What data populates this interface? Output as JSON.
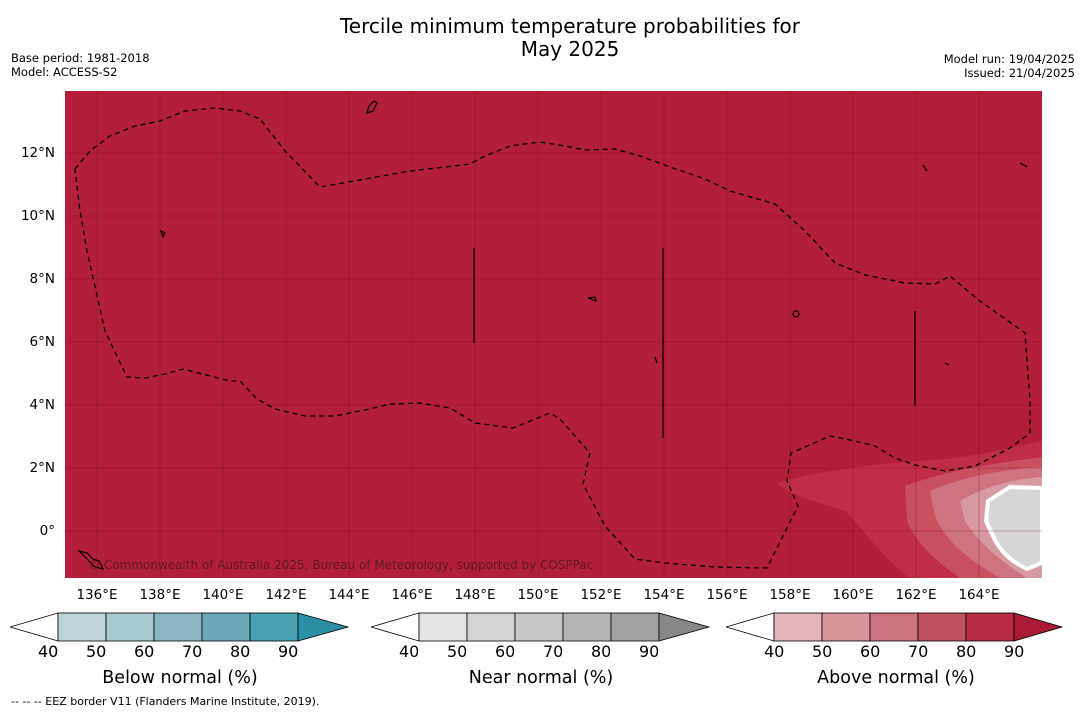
{
  "title": {
    "line1": "Tercile minimum temperature probabilities for",
    "line2": "May 2025"
  },
  "meta": {
    "base_period": "Base period: 1981-2018",
    "model": "Model: ACCESS-S2",
    "model_run": "Model run: 19/04/2025",
    "issued": "Issued: 21/04/2025"
  },
  "map": {
    "copyright": "© Commonwealth of Australia 2025, Bureau of Meteorology, supported by COSPPac",
    "lat_labels": [
      "12°N",
      "10°N",
      "8°N",
      "6°N",
      "4°N",
      "2°N",
      "0°"
    ],
    "lon_labels": [
      "136°E",
      "138°E",
      "140°E",
      "142°E",
      "144°E",
      "146°E",
      "148°E",
      "150°E",
      "152°E",
      "154°E",
      "156°E",
      "158°E",
      "160°E",
      "162°E",
      "164°E"
    ],
    "dominant_category": "Above normal",
    "dominant_probability_range": "90+",
    "colors": {
      "above_90": "#b31e3a",
      "above_80": "#c02d47",
      "above_70": "#c9505f",
      "above_60": "#cf7380",
      "above_50": "#d89aa1",
      "near_40": "#d6d6d6",
      "eez_border": "#000000"
    }
  },
  "colorbars": {
    "ticks": [
      "40",
      "50",
      "60",
      "70",
      "80",
      "90"
    ],
    "below": {
      "label": "Below normal (%)",
      "colors": [
        "#ffffff",
        "#bcd4da",
        "#a6c8ce",
        "#8bb7c2",
        "#6ba9b8",
        "#48a0b1",
        "#2a8fa4"
      ]
    },
    "near": {
      "label": "Near normal (%)",
      "colors": [
        "#ffffff",
        "#e4e4e4",
        "#d4d4d4",
        "#c6c6c6",
        "#b4b4b4",
        "#a2a2a2",
        "#878787"
      ]
    },
    "above": {
      "label": "Above normal (%)",
      "colors": [
        "#ffffff",
        "#e1b5bb",
        "#d7959b",
        "#cb737c",
        "#c2515f",
        "#b52c43",
        "#a91a33"
      ]
    }
  },
  "footnote": "--  --  -- EEZ border V11 (Flanders Marine Institute, 2019)."
}
